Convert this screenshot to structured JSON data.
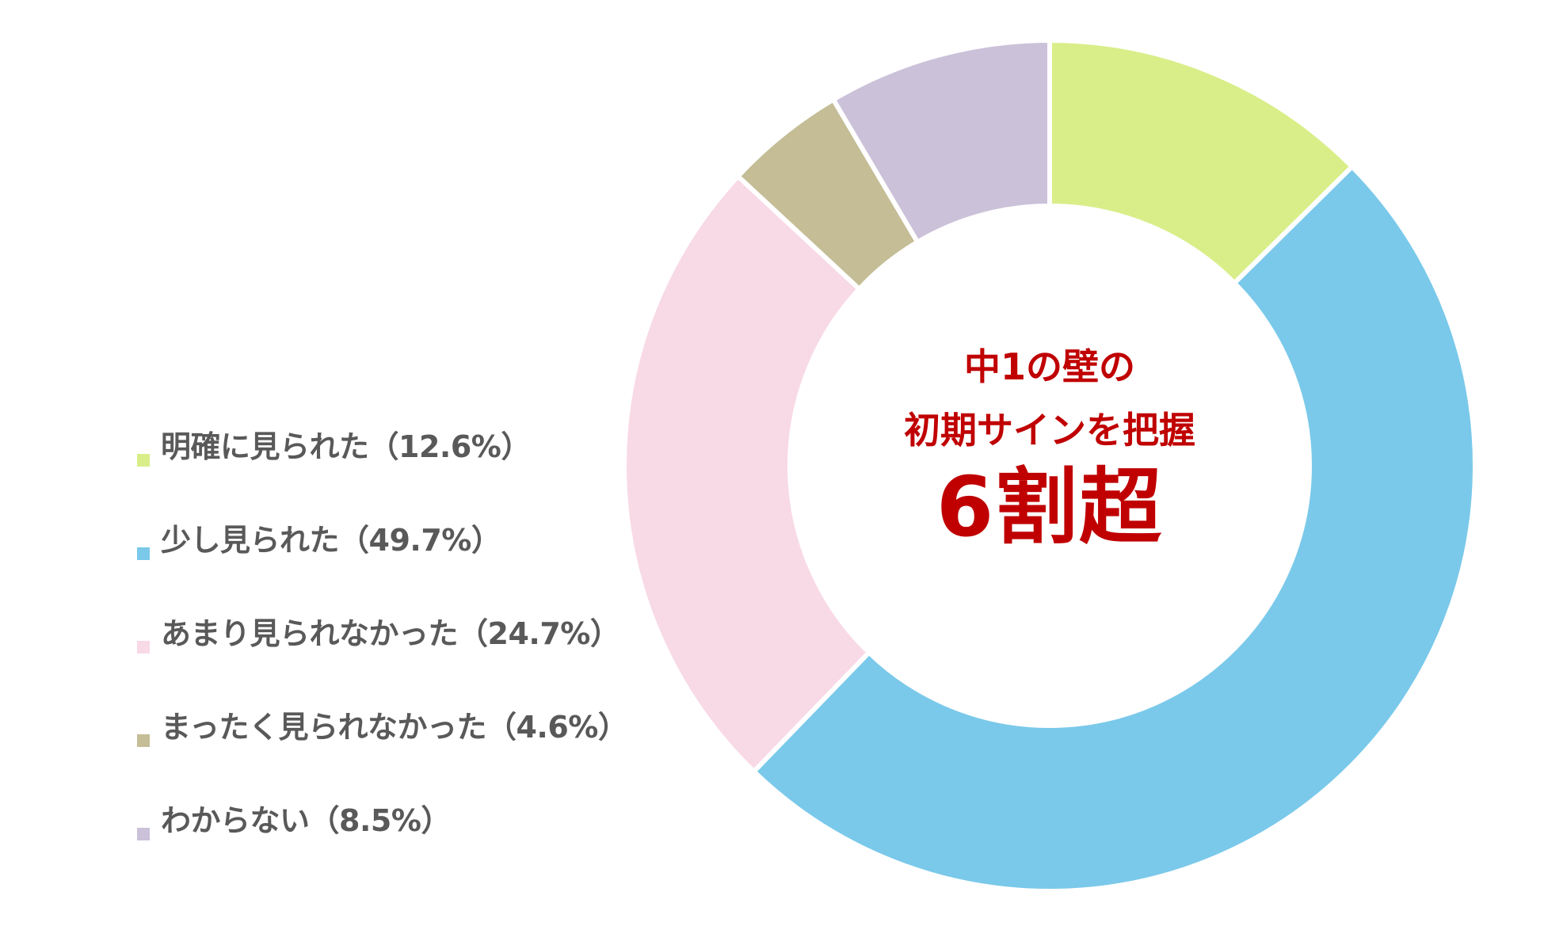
{
  "chart_data": {
    "type": "pie",
    "variant": "donut",
    "categories": [
      "明確に見られた",
      "少し見られた",
      "あまり見られなかった",
      "まったく見られなかった",
      "わからない"
    ],
    "values": [
      12.6,
      49.7,
      24.7,
      4.6,
      8.5
    ],
    "colors": [
      "#d9ee89",
      "#7ac9ea",
      "#f8d9e6",
      "#c4bd96",
      "#cbc1d9"
    ],
    "legend_labels": [
      "明確に見られた（12.6%）",
      "少し見られた（49.7%）",
      "あまり見られなかった（24.7%）",
      "まったく見られなかった（4.6%）",
      "わからない（8.5%）"
    ],
    "legend_position": "left",
    "start": "top, clockwise",
    "center_annotation": {
      "line1": "中1の壁の",
      "line2": "初期サインを把握",
      "emphasis": "6割超"
    }
  }
}
